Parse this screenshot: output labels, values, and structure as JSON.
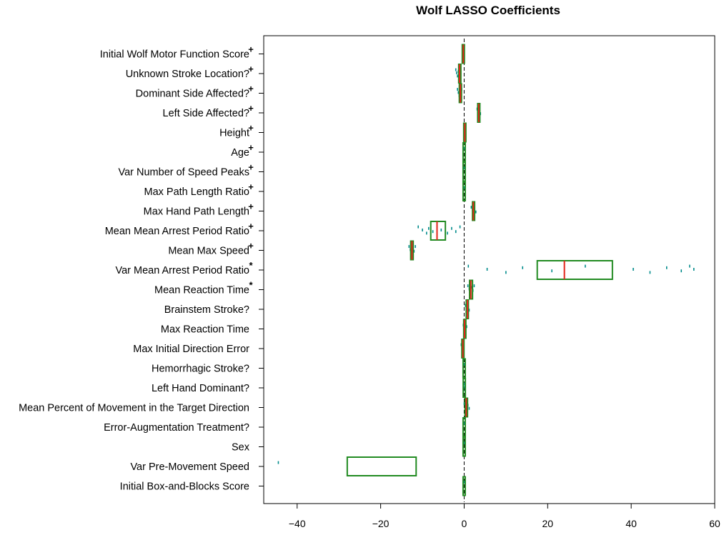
{
  "chart_data": {
    "type": "boxplot",
    "title": "Wolf LASSO Coefficients",
    "xlabel": "",
    "ylabel": "",
    "xlim": [
      -48,
      60
    ],
    "xticks": [
      -40,
      -20,
      0,
      20,
      40,
      60
    ],
    "reference_line": {
      "x": 0,
      "style": "dashed"
    },
    "colors": {
      "box": "#228B22",
      "median": "#E2231A",
      "points": "#008B8B",
      "reference": "#000000"
    },
    "variables": [
      {
        "label": "Initial Wolf Motor Function Score",
        "marker": "+",
        "q1": -0.3,
        "median": -0.2,
        "q3": -0.1,
        "points": [
          -0.3,
          -0.25,
          -0.2,
          -0.15,
          -0.1
        ]
      },
      {
        "label": "Unknown Stroke Location?",
        "marker": "+",
        "q1": -1.2,
        "median": -1.1,
        "q3": -0.9,
        "points": [
          -2.0,
          -1.8,
          -1.6,
          -1.4,
          -1.2,
          -1.0,
          -0.8
        ]
      },
      {
        "label": "Dominant Side Affected?",
        "marker": "+",
        "q1": -1.1,
        "median": -0.9,
        "q3": -0.7,
        "points": [
          -1.6,
          -1.4,
          -1.2,
          -1.0,
          -0.8,
          -0.6
        ]
      },
      {
        "label": "Left Side Affected?",
        "marker": "+",
        "q1": 3.3,
        "median": 3.5,
        "q3": 3.7,
        "points": [
          3.1,
          3.3,
          3.5,
          3.7,
          3.9
        ]
      },
      {
        "label": "Height",
        "marker": "+",
        "q1": 0.1,
        "median": 0.15,
        "q3": 0.2,
        "points": [
          0.05,
          0.1,
          0.2,
          0.25
        ]
      },
      {
        "label": "Age",
        "marker": "+",
        "q1": 0.0,
        "median": 0.0,
        "q3": 0.0,
        "points": [
          0.0
        ]
      },
      {
        "label": "Var Number of Speed Peaks",
        "marker": "+",
        "q1": 0.0,
        "median": 0.0,
        "q3": 0.0,
        "points": [
          0.0
        ]
      },
      {
        "label": "Max Path Length Ratio",
        "marker": "+",
        "q1": 0.0,
        "median": 0.0,
        "q3": 0.0,
        "points": [
          0.0
        ]
      },
      {
        "label": "Max Hand Path Length",
        "marker": "+",
        "q1": 2.0,
        "median": 2.2,
        "q3": 2.5,
        "points": [
          1.7,
          2.0,
          2.2,
          2.5,
          2.8
        ]
      },
      {
        "label": "Mean Mean Arrest Period Ratio",
        "marker": "+",
        "q1": -8,
        "median": -6.5,
        "q3": -4.5,
        "points": [
          -11,
          -10,
          -9,
          -8.5,
          -7.5,
          -6.5,
          -5.5,
          -4,
          -3,
          -2,
          -1
        ]
      },
      {
        "label": "Mean Max Speed",
        "marker": "+",
        "q1": -12.8,
        "median": -12.5,
        "q3": -12.2,
        "points": [
          -13.2,
          -12.9,
          -12.6,
          -12.3,
          -12.0,
          -11.7
        ]
      },
      {
        "label": "Var Mean Arrest Period Ratio",
        "marker": "*",
        "q1": 17.5,
        "median": 24,
        "q3": 35.5,
        "points": [
          1,
          5.5,
          10,
          14,
          21,
          29,
          40.5,
          44.5,
          48.5,
          52,
          54,
          55
        ]
      },
      {
        "label": "Mean Reaction Time",
        "marker": "*",
        "q1": 1.3,
        "median": 1.6,
        "q3": 2.0,
        "points": [
          0.9,
          1.2,
          1.5,
          1.8,
          2.1,
          2.4
        ]
      },
      {
        "label": "Brainstem Stroke?",
        "marker": "",
        "q1": 0.5,
        "median": 0.8,
        "q3": 1.0,
        "points": [
          0.3,
          0.5,
          0.8,
          1.0,
          1.2
        ]
      },
      {
        "label": "Max Reaction Time",
        "marker": "",
        "q1": 0.0,
        "median": 0.1,
        "q3": 0.3,
        "points": [
          -0.2,
          0.0,
          0.3,
          0.6
        ]
      },
      {
        "label": "Max Initial Direction Error",
        "marker": "",
        "q1": -0.5,
        "median": -0.3,
        "q3": -0.1,
        "points": [
          -0.7,
          -0.4,
          -0.1
        ]
      },
      {
        "label": "Hemorrhagic Stroke?",
        "marker": "",
        "q1": 0.0,
        "median": 0.0,
        "q3": 0.0,
        "points": [
          0.0
        ]
      },
      {
        "label": "Left Hand Dominant?",
        "marker": "",
        "q1": 0.0,
        "median": 0.0,
        "q3": 0.05,
        "points": [
          0.0,
          0.1,
          0.2
        ]
      },
      {
        "label": "Mean Percent of Movement in the Target Direction",
        "marker": "",
        "q1": 0.2,
        "median": 0.5,
        "q3": 0.8,
        "points": [
          0.0,
          0.3,
          0.6,
          0.9,
          1.2
        ]
      },
      {
        "label": "Error-Augmentation Treatment?",
        "marker": "",
        "q1": 0.0,
        "median": 0.0,
        "q3": 0.0,
        "points": [
          0.0
        ]
      },
      {
        "label": "Sex",
        "marker": "",
        "q1": 0.0,
        "median": 0.0,
        "q3": 0.0,
        "points": [
          0.0
        ]
      },
      {
        "label": "Var Pre-Movement Speed",
        "marker": "",
        "q1": -28,
        "median": -20,
        "q3": -11.5,
        "points": [
          -44.5
        ],
        "hide_median": true
      },
      {
        "label": "Initial Box-and-Blocks Score",
        "marker": "",
        "q1": 0.0,
        "median": 0.0,
        "q3": 0.0,
        "points": [
          0.0
        ]
      }
    ]
  }
}
